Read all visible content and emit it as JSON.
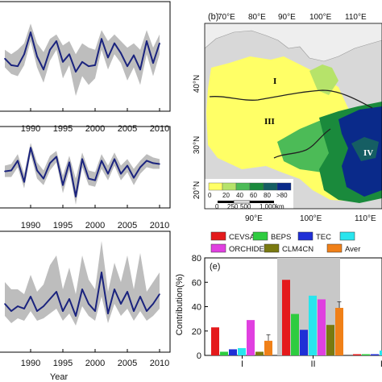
{
  "colors": {
    "series_line": "#1a237e",
    "range_band": "#bdbdbd",
    "highlight_band": "#c8c8c8",
    "map_bins": [
      "#ffff66",
      "#b6e36a",
      "#4cbb57",
      "#1a8a3c",
      "#155e63",
      "#0a2a8a"
    ]
  },
  "time_panels": {
    "xlabel": "Year",
    "tick_labels": [
      "1990",
      "1995",
      "2000",
      "2005",
      "2010"
    ]
  },
  "map_panel": {
    "label": "(b)",
    "top_ticks": [
      "70°E",
      "80°E",
      "90°E",
      "100°E",
      "110°E"
    ],
    "bottom_ticks": [
      "90°E",
      "100°E",
      "110°E"
    ],
    "left_ticks": [
      "40°N",
      "30°N",
      "20°N"
    ],
    "region_labels": [
      "I",
      "III",
      "IV"
    ],
    "colorbar_labels": [
      "0",
      "20",
      "40",
      "60",
      "80",
      ">80"
    ],
    "scale_labels": [
      "0",
      "250",
      "500",
      "1,000"
    ],
    "scale_unit": "km"
  },
  "chart_data": [
    {
      "type": "line",
      "panel": "top-left",
      "x": [
        1986,
        1987,
        1988,
        1989,
        1990,
        1991,
        1992,
        1993,
        1994,
        1995,
        1996,
        1997,
        1998,
        1999,
        2000,
        2001,
        2002,
        2003,
        2004,
        2005,
        2006,
        2007,
        2008,
        2009,
        2010
      ],
      "series": [
        {
          "values": [
            48,
            42,
            41,
            52,
            72,
            50,
            38,
            56,
            64,
            45,
            52,
            36,
            45,
            41,
            42,
            66,
            49,
            62,
            53,
            41,
            51,
            38,
            64,
            44,
            62
          ]
        }
      ],
      "band_upper": [
        56,
        52,
        56,
        62,
        80,
        62,
        54,
        66,
        70,
        60,
        64,
        52,
        62,
        58,
        56,
        74,
        64,
        70,
        64,
        58,
        62,
        56,
        74,
        58,
        70
      ],
      "band_lower": [
        40,
        34,
        32,
        42,
        64,
        40,
        26,
        46,
        56,
        30,
        42,
        14,
        32,
        24,
        30,
        56,
        38,
        52,
        44,
        28,
        40,
        24,
        52,
        32,
        52
      ],
      "xlim": [
        1986,
        2011
      ],
      "ylim": [
        0,
        100
      ]
    },
    {
      "type": "line",
      "panel": "middle-left",
      "x": [
        1986,
        1987,
        1988,
        1989,
        1990,
        1991,
        1992,
        1993,
        1994,
        1995,
        1996,
        1997,
        1998,
        1999,
        2000,
        2001,
        2002,
        2003,
        2004,
        2005,
        2006,
        2007,
        2008,
        2009,
        2010
      ],
      "series": [
        {
          "values": [
            45,
            46,
            58,
            32,
            74,
            46,
            36,
            55,
            63,
            28,
            56,
            14,
            60,
            36,
            34,
            58,
            42,
            60,
            42,
            52,
            37,
            50,
            58,
            55,
            54
          ]
        }
      ],
      "band_upper": [
        52,
        54,
        66,
        42,
        80,
        56,
        46,
        64,
        70,
        40,
        64,
        36,
        68,
        46,
        44,
        66,
        52,
        68,
        52,
        60,
        48,
        58,
        66,
        62,
        60
      ],
      "band_lower": [
        38,
        38,
        50,
        24,
        66,
        36,
        28,
        46,
        56,
        18,
        46,
        4,
        50,
        28,
        26,
        48,
        34,
        52,
        34,
        44,
        28,
        42,
        50,
        48,
        48
      ],
      "xlim": [
        1986,
        2011
      ],
      "ylim": [
        0,
        100
      ]
    },
    {
      "type": "line",
      "panel": "bottom-left",
      "xlabel": "Year",
      "x": [
        1986,
        1987,
        1988,
        1989,
        1990,
        1991,
        1992,
        1993,
        1994,
        1995,
        1996,
        1997,
        1998,
        1999,
        2000,
        2001,
        2002,
        2003,
        2004,
        2005,
        2006,
        2007,
        2008,
        2009,
        2010
      ],
      "series": [
        {
          "values": [
            40,
            34,
            38,
            36,
            46,
            34,
            38,
            44,
            50,
            34,
            44,
            30,
            52,
            40,
            34,
            66,
            32,
            52,
            40,
            50,
            34,
            46,
            34,
            40,
            48
          ]
        }
      ],
      "band_upper": [
        58,
        52,
        52,
        48,
        64,
        50,
        56,
        72,
        80,
        52,
        70,
        48,
        80,
        60,
        52,
        92,
        50,
        74,
        58,
        80,
        52,
        82,
        50,
        58,
        66
      ],
      "band_lower": [
        30,
        24,
        28,
        26,
        34,
        26,
        28,
        32,
        36,
        26,
        32,
        22,
        38,
        30,
        26,
        46,
        24,
        40,
        30,
        36,
        26,
        34,
        26,
        30,
        36
      ],
      "xlim": [
        1986,
        2011
      ],
      "ylim": [
        0,
        100
      ]
    },
    {
      "type": "bar",
      "panel": "e",
      "label": "(e)",
      "ylabel": "Contribution(%)",
      "ylim": [
        0,
        80
      ],
      "yticks": [
        "0",
        "20",
        "40",
        "60",
        "80"
      ],
      "categories": [
        "I",
        "II",
        "III"
      ],
      "highlight_category": "II",
      "series": [
        {
          "name": "CEVSA2",
          "color": "#e41a1c",
          "values": [
            23,
            62,
            1
          ]
        },
        {
          "name": "BEPS",
          "color": "#2ecc40",
          "values": [
            3,
            34,
            1
          ]
        },
        {
          "name": "TEC",
          "color": "#1f2fd6",
          "values": [
            5,
            21,
            1
          ]
        },
        {
          "name": "",
          "color": "#29e5ee",
          "values": [
            6,
            49,
            4
          ]
        },
        {
          "name": "ORCHIDEE",
          "color": "#e040e0",
          "values": [
            29,
            46,
            2
          ]
        },
        {
          "name": "CLM4CN",
          "color": "#7a7a10",
          "values": [
            3,
            25,
            2
          ]
        },
        {
          "name": "Aver",
          "color": "#f08018",
          "values": [
            12,
            39,
            3
          ]
        }
      ],
      "error_bars": {
        "series": "Aver",
        "upper": [
          17,
          44,
          4
        ]
      }
    }
  ]
}
